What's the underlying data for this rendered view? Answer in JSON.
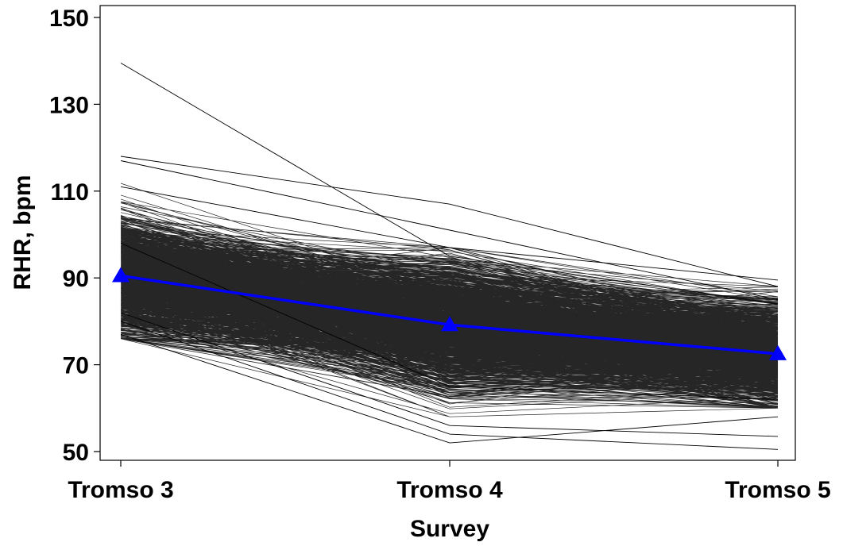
{
  "chart_data": {
    "type": "line",
    "title": "",
    "xlabel": "Survey",
    "ylabel": "RHR, bpm",
    "categories": [
      "Tromso 3",
      "Tromso 4",
      "Tromso 5"
    ],
    "ylim": [
      48,
      152
    ],
    "yticks": [
      50,
      70,
      90,
      110,
      130,
      150
    ],
    "grid": false,
    "legend": "none",
    "colors": {
      "individual": "#000000",
      "mean": "#0000ff",
      "frame": "#000000"
    },
    "mean_series": {
      "values": [
        90.5,
        79.2,
        72.5
      ],
      "marker": "triangle"
    },
    "individual_trajectories": {
      "count": 1300,
      "baseline_range": [
        76,
        118
      ],
      "notable": [
        [
          139.5,
          95,
          84
        ],
        [
          118,
          107,
          88
        ],
        [
          117,
          101,
          85
        ],
        [
          111,
          97,
          89.5
        ],
        [
          77,
          52,
          58
        ],
        [
          80,
          54,
          50.5
        ],
        [
          82,
          56,
          53.5
        ],
        [
          98,
          65,
          62
        ]
      ]
    }
  }
}
